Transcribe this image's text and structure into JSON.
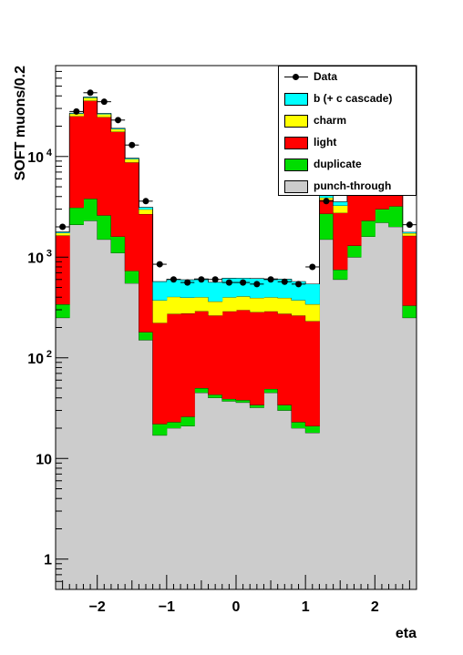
{
  "chart_data": {
    "type": "bar",
    "stacked": true,
    "log_y": true,
    "xlabel": "eta",
    "ylabel": "SOFT muons/0.2",
    "xlim": [
      -2.6,
      2.6
    ],
    "ylim": [
      0.5,
      80000
    ],
    "x_ticks": [
      {
        "value": -2,
        "label": "−2"
      },
      {
        "value": -1,
        "label": "−1"
      },
      {
        "value": 0,
        "label": "0"
      },
      {
        "value": 1,
        "label": "1"
      },
      {
        "value": 2,
        "label": "2"
      }
    ],
    "y_ticks": [
      {
        "value": 1,
        "label": "1"
      },
      {
        "value": 10,
        "label": "10"
      },
      {
        "value": 100,
        "label": "10",
        "exp": "2"
      },
      {
        "value": 1000,
        "label": "10",
        "exp": "3"
      },
      {
        "value": 10000,
        "label": "10",
        "exp": "4"
      }
    ],
    "bin_edges": [
      -2.6,
      -2.4,
      -2.2,
      -2.0,
      -1.8,
      -1.6,
      -1.4,
      -1.2,
      -1.0,
      -0.8,
      -0.6,
      -0.4,
      -0.2,
      0.0,
      0.2,
      0.4,
      0.6,
      0.8,
      1.0,
      1.2,
      1.4,
      1.6,
      1.8,
      2.0,
      2.2,
      2.4,
      2.6
    ],
    "series": [
      {
        "name": "punch-through",
        "color": "#cccccc",
        "values": [
          250,
          2100,
          2300,
          1500,
          1100,
          550,
          150,
          17,
          20,
          21,
          45,
          40,
          37,
          36,
          32,
          45,
          30,
          20,
          18,
          1500,
          600,
          1000,
          1600,
          2200,
          2000,
          250
        ]
      },
      {
        "name": "duplicate",
        "color": "#00dd00",
        "values": [
          90,
          1000,
          1500,
          1100,
          500,
          180,
          30,
          5,
          3,
          5,
          5,
          3,
          2,
          2,
          2,
          4,
          4,
          3,
          3,
          1200,
          150,
          300,
          700,
          800,
          1200,
          80
        ]
      },
      {
        "name": "light",
        "color": "#ff0000",
        "values": [
          1300,
          22000,
          32000,
          22000,
          16000,
          8000,
          2500,
          200,
          250,
          250,
          240,
          220,
          250,
          260,
          250,
          240,
          240,
          240,
          210,
          1000,
          2000,
          4000,
          10000,
          20000,
          30000,
          1300
        ]
      },
      {
        "name": "charm",
        "color": "#ffff00",
        "values": [
          100,
          1500,
          2500,
          1700,
          1100,
          700,
          300,
          150,
          130,
          120,
          110,
          100,
          110,
          110,
          110,
          110,
          120,
          110,
          110,
          200,
          500,
          1500,
          3000,
          5000,
          5000,
          100
        ]
      },
      {
        "name": "b (+ c cascade)",
        "color": "#00ffff",
        "values": [
          40,
          400,
          700,
          500,
          350,
          200,
          150,
          200,
          200,
          200,
          210,
          200,
          220,
          210,
          220,
          210,
          210,
          200,
          200,
          200,
          300,
          600,
          1200,
          2000,
          1500,
          40
        ]
      }
    ],
    "data": {
      "name": "Data",
      "values": [
        2000,
        28000,
        43000,
        35000,
        23000,
        13000,
        3600,
        850,
        600,
        560,
        600,
        600,
        560,
        560,
        540,
        600,
        570,
        540,
        800,
        3600,
        13000,
        24000,
        37000,
        44000,
        30000,
        2100
      ]
    },
    "legend_position": "top-right",
    "legend_order": [
      "Data",
      "b (+ c cascade)",
      "charm",
      "light",
      "duplicate",
      "punch-through"
    ]
  }
}
